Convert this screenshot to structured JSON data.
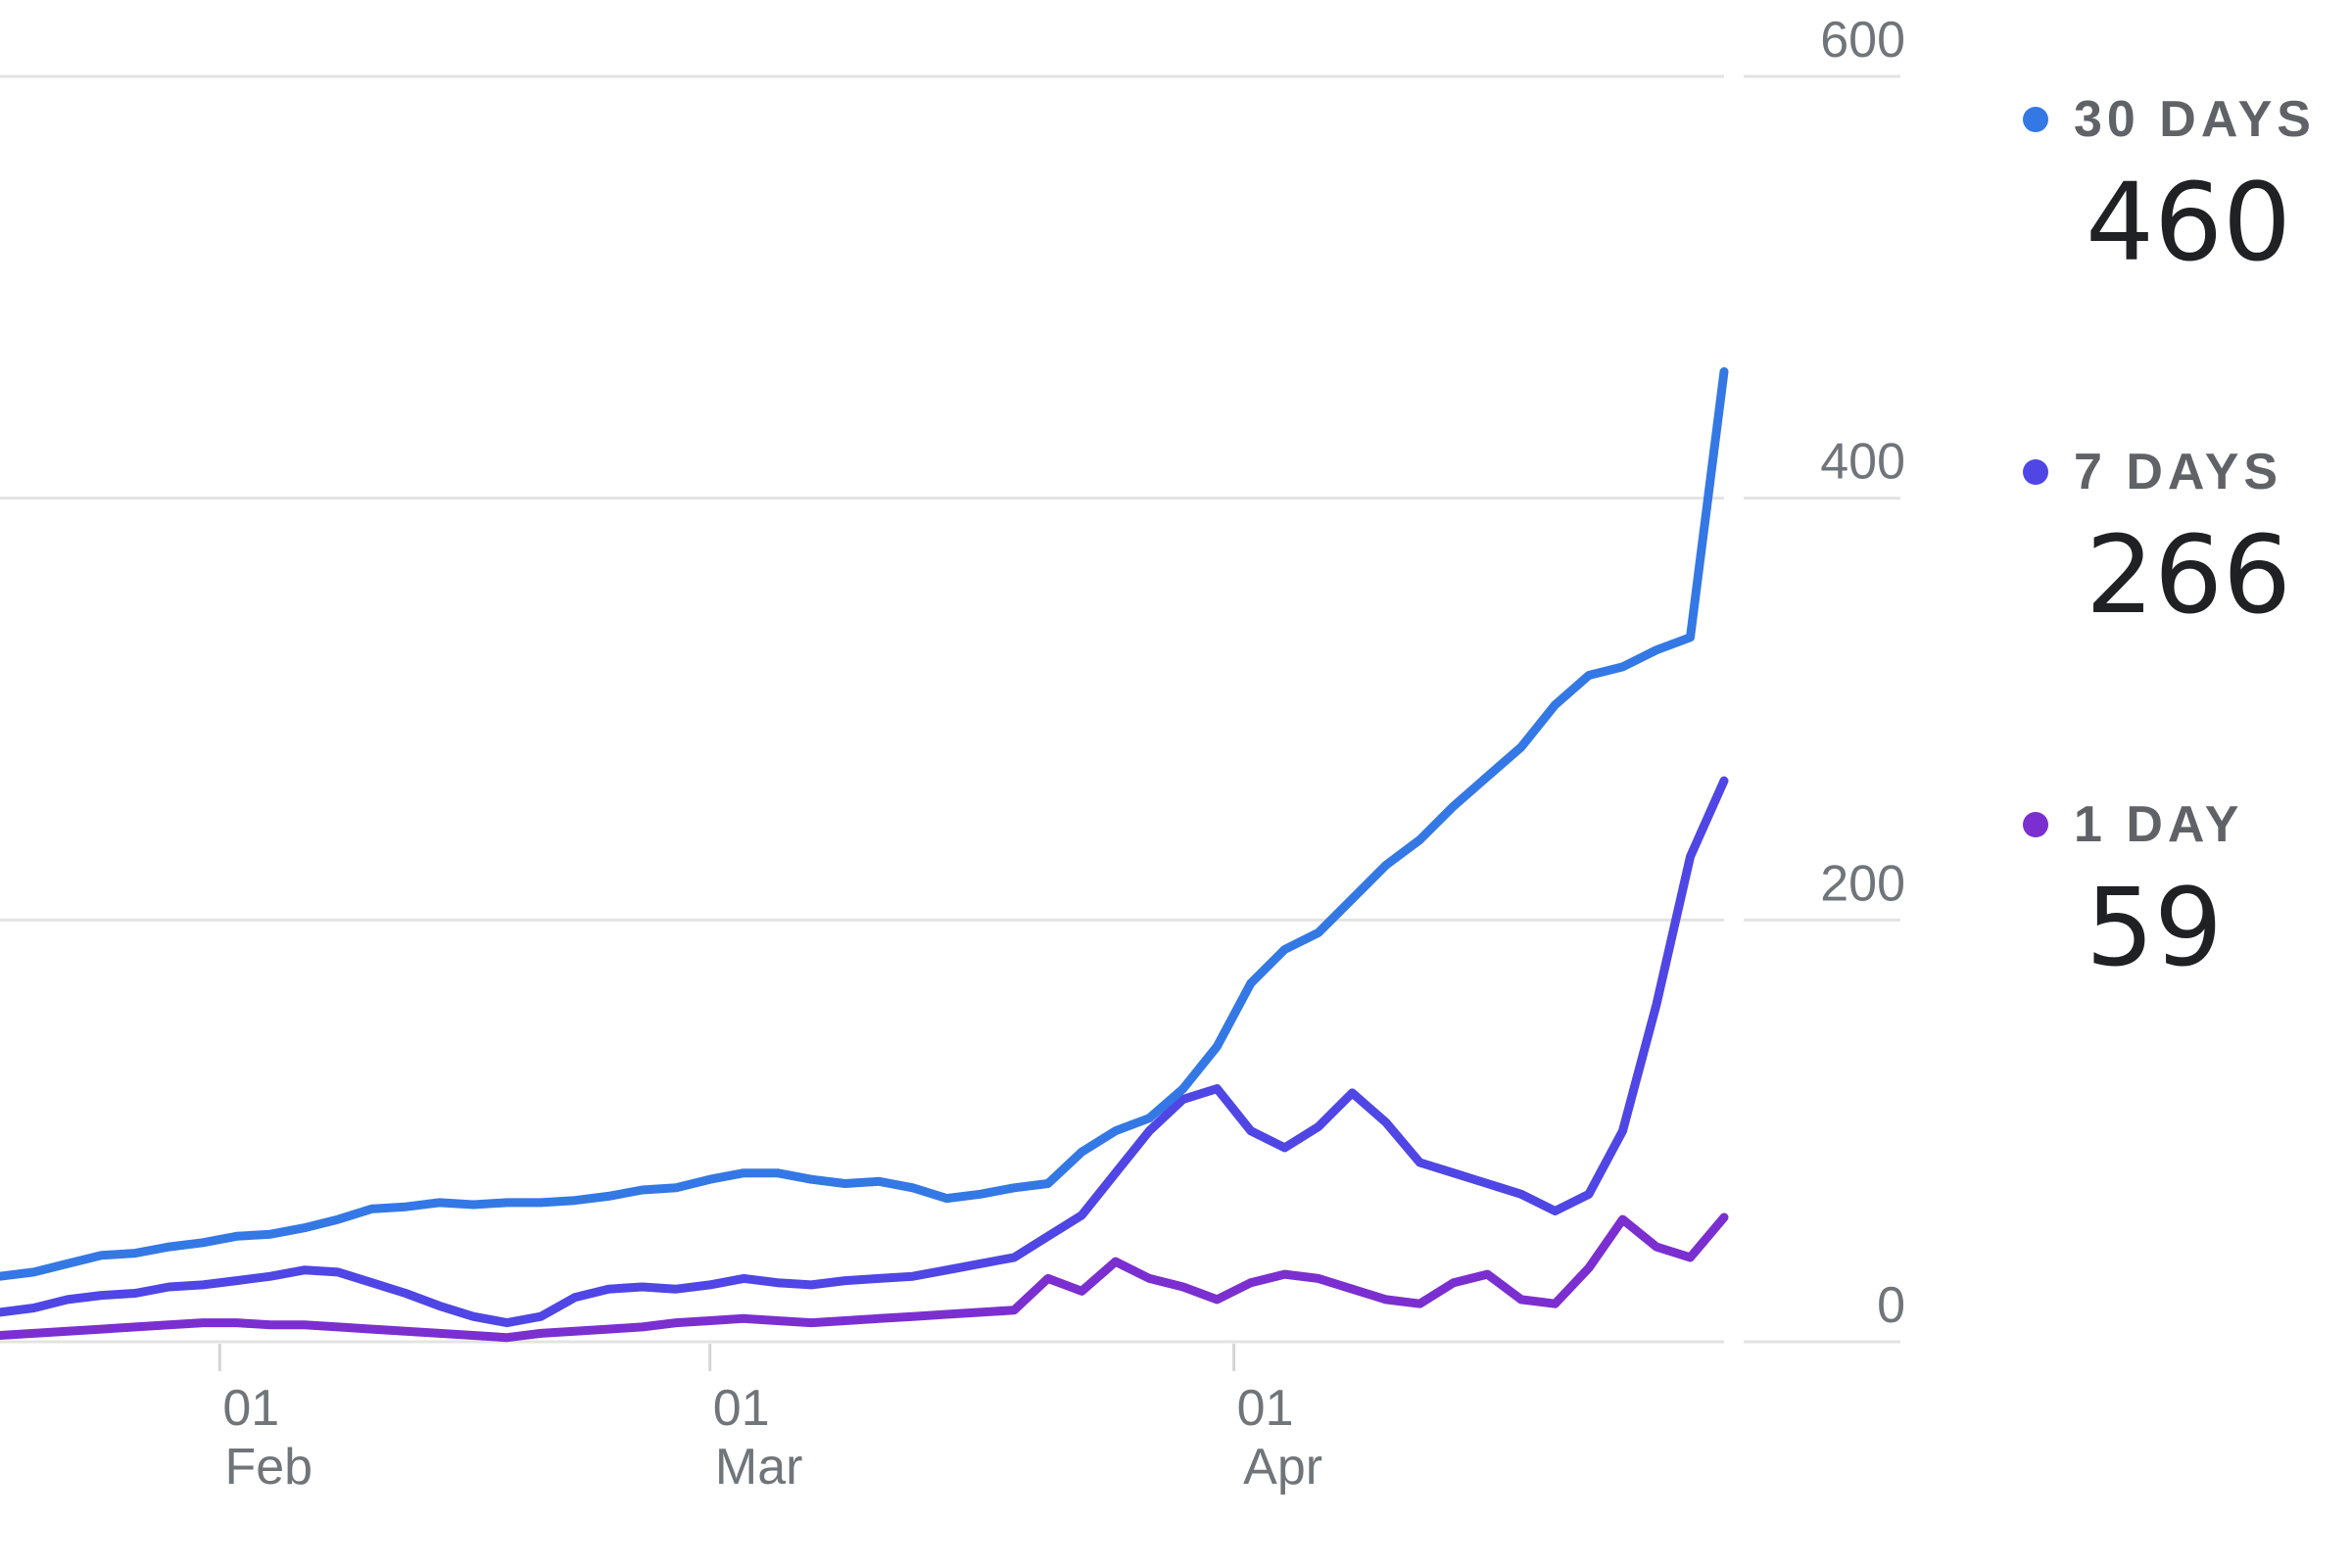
{
  "chart_data": {
    "type": "line",
    "y_axis_position": "right",
    "ylim": [
      0,
      600
    ],
    "y_ticks": [
      {
        "value": 0,
        "label": "0"
      },
      {
        "value": 200,
        "label": "200"
      },
      {
        "value": 400,
        "label": "400"
      },
      {
        "value": 600,
        "label": "600"
      }
    ],
    "grid": true,
    "x_range": [
      "2020-01-19",
      "2020-04-30"
    ],
    "x_ticks": [
      {
        "date": "2020-02-01",
        "day": "01",
        "month": "Feb"
      },
      {
        "date": "2020-03-01",
        "day": "01",
        "month": "Mar"
      },
      {
        "date": "2020-04-01",
        "day": "01",
        "month": "Apr"
      }
    ],
    "legend_position": "right",
    "series": [
      {
        "name": "30 DAYS",
        "color": "#3478e5",
        "current_value": "460",
        "points": [
          [
            "2020-01-19",
            31
          ],
          [
            "2020-01-21",
            33
          ],
          [
            "2020-01-23",
            37
          ],
          [
            "2020-01-25",
            41
          ],
          [
            "2020-01-27",
            42
          ],
          [
            "2020-01-29",
            45
          ],
          [
            "2020-01-31",
            47
          ],
          [
            "2020-02-02",
            50
          ],
          [
            "2020-02-04",
            51
          ],
          [
            "2020-02-06",
            54
          ],
          [
            "2020-02-08",
            58
          ],
          [
            "2020-02-10",
            63
          ],
          [
            "2020-02-12",
            64
          ],
          [
            "2020-02-14",
            66
          ],
          [
            "2020-02-16",
            65
          ],
          [
            "2020-02-18",
            66
          ],
          [
            "2020-02-20",
            66
          ],
          [
            "2020-02-22",
            67
          ],
          [
            "2020-02-24",
            69
          ],
          [
            "2020-02-26",
            72
          ],
          [
            "2020-02-28",
            73
          ],
          [
            "2020-03-01",
            77
          ],
          [
            "2020-03-03",
            80
          ],
          [
            "2020-03-05",
            80
          ],
          [
            "2020-03-07",
            77
          ],
          [
            "2020-03-09",
            75
          ],
          [
            "2020-03-11",
            76
          ],
          [
            "2020-03-13",
            73
          ],
          [
            "2020-03-15",
            68
          ],
          [
            "2020-03-17",
            70
          ],
          [
            "2020-03-19",
            73
          ],
          [
            "2020-03-21",
            75
          ],
          [
            "2020-03-23",
            90
          ],
          [
            "2020-03-25",
            100
          ],
          [
            "2020-03-27",
            106
          ],
          [
            "2020-03-29",
            120
          ],
          [
            "2020-03-31",
            140
          ],
          [
            "2020-04-02",
            170
          ],
          [
            "2020-04-04",
            186
          ],
          [
            "2020-04-06",
            194
          ],
          [
            "2020-04-08",
            210
          ],
          [
            "2020-04-10",
            226
          ],
          [
            "2020-04-12",
            238
          ],
          [
            "2020-04-14",
            254
          ],
          [
            "2020-04-16",
            268
          ],
          [
            "2020-04-18",
            282
          ],
          [
            "2020-04-20",
            302
          ],
          [
            "2020-04-22",
            316
          ],
          [
            "2020-04-24",
            320
          ],
          [
            "2020-04-26",
            328
          ],
          [
            "2020-04-28",
            334
          ],
          [
            "2020-04-30",
            460
          ]
        ]
      },
      {
        "name": "7 DAYS",
        "color": "#4f46e5",
        "current_value": "266",
        "points": [
          [
            "2020-01-19",
            14
          ],
          [
            "2020-01-21",
            16
          ],
          [
            "2020-01-23",
            20
          ],
          [
            "2020-01-25",
            22
          ],
          [
            "2020-01-27",
            23
          ],
          [
            "2020-01-29",
            26
          ],
          [
            "2020-01-31",
            27
          ],
          [
            "2020-02-02",
            29
          ],
          [
            "2020-02-04",
            31
          ],
          [
            "2020-02-06",
            34
          ],
          [
            "2020-02-08",
            33
          ],
          [
            "2020-02-10",
            28
          ],
          [
            "2020-02-12",
            23
          ],
          [
            "2020-02-14",
            17
          ],
          [
            "2020-02-16",
            12
          ],
          [
            "2020-02-18",
            9
          ],
          [
            "2020-02-20",
            12
          ],
          [
            "2020-02-22",
            21
          ],
          [
            "2020-02-24",
            25
          ],
          [
            "2020-02-26",
            26
          ],
          [
            "2020-02-28",
            25
          ],
          [
            "2020-03-01",
            27
          ],
          [
            "2020-03-03",
            30
          ],
          [
            "2020-03-05",
            28
          ],
          [
            "2020-03-07",
            27
          ],
          [
            "2020-03-09",
            29
          ],
          [
            "2020-03-11",
            30
          ],
          [
            "2020-03-13",
            31
          ],
          [
            "2020-03-15",
            34
          ],
          [
            "2020-03-17",
            37
          ],
          [
            "2020-03-19",
            40
          ],
          [
            "2020-03-21",
            50
          ],
          [
            "2020-03-23",
            60
          ],
          [
            "2020-03-25",
            80
          ],
          [
            "2020-03-27",
            100
          ],
          [
            "2020-03-29",
            115
          ],
          [
            "2020-03-31",
            120
          ],
          [
            "2020-04-02",
            100
          ],
          [
            "2020-04-04",
            92
          ],
          [
            "2020-04-06",
            102
          ],
          [
            "2020-04-08",
            118
          ],
          [
            "2020-04-10",
            104
          ],
          [
            "2020-04-12",
            85
          ],
          [
            "2020-04-14",
            80
          ],
          [
            "2020-04-16",
            75
          ],
          [
            "2020-04-18",
            70
          ],
          [
            "2020-04-20",
            62
          ],
          [
            "2020-04-22",
            70
          ],
          [
            "2020-04-24",
            100
          ],
          [
            "2020-04-26",
            160
          ],
          [
            "2020-04-28",
            230
          ],
          [
            "2020-04-30",
            266
          ]
        ]
      },
      {
        "name": "1 DAY",
        "color": "#7b2fd0",
        "current_value": "59",
        "points": [
          [
            "2020-01-19",
            3
          ],
          [
            "2020-01-21",
            4
          ],
          [
            "2020-01-23",
            5
          ],
          [
            "2020-01-25",
            6
          ],
          [
            "2020-01-27",
            7
          ],
          [
            "2020-01-29",
            8
          ],
          [
            "2020-01-31",
            9
          ],
          [
            "2020-02-02",
            9
          ],
          [
            "2020-02-04",
            8
          ],
          [
            "2020-02-06",
            8
          ],
          [
            "2020-02-08",
            7
          ],
          [
            "2020-02-10",
            6
          ],
          [
            "2020-02-12",
            5
          ],
          [
            "2020-02-14",
            4
          ],
          [
            "2020-02-16",
            3
          ],
          [
            "2020-02-18",
            2
          ],
          [
            "2020-02-20",
            4
          ],
          [
            "2020-02-22",
            5
          ],
          [
            "2020-02-24",
            6
          ],
          [
            "2020-02-26",
            7
          ],
          [
            "2020-02-28",
            9
          ],
          [
            "2020-03-01",
            10
          ],
          [
            "2020-03-03",
            11
          ],
          [
            "2020-03-05",
            10
          ],
          [
            "2020-03-07",
            9
          ],
          [
            "2020-03-09",
            10
          ],
          [
            "2020-03-11",
            11
          ],
          [
            "2020-03-13",
            12
          ],
          [
            "2020-03-15",
            13
          ],
          [
            "2020-03-17",
            14
          ],
          [
            "2020-03-19",
            15
          ],
          [
            "2020-03-21",
            30
          ],
          [
            "2020-03-23",
            24
          ],
          [
            "2020-03-25",
            38
          ],
          [
            "2020-03-27",
            30
          ],
          [
            "2020-03-29",
            26
          ],
          [
            "2020-03-31",
            20
          ],
          [
            "2020-04-02",
            28
          ],
          [
            "2020-04-04",
            32
          ],
          [
            "2020-04-06",
            30
          ],
          [
            "2020-04-08",
            25
          ],
          [
            "2020-04-10",
            20
          ],
          [
            "2020-04-12",
            18
          ],
          [
            "2020-04-14",
            28
          ],
          [
            "2020-04-16",
            32
          ],
          [
            "2020-04-18",
            20
          ],
          [
            "2020-04-20",
            18
          ],
          [
            "2020-04-22",
            35
          ],
          [
            "2020-04-24",
            58
          ],
          [
            "2020-04-26",
            45
          ],
          [
            "2020-04-28",
            40
          ],
          [
            "2020-04-30",
            59
          ]
        ]
      }
    ]
  }
}
